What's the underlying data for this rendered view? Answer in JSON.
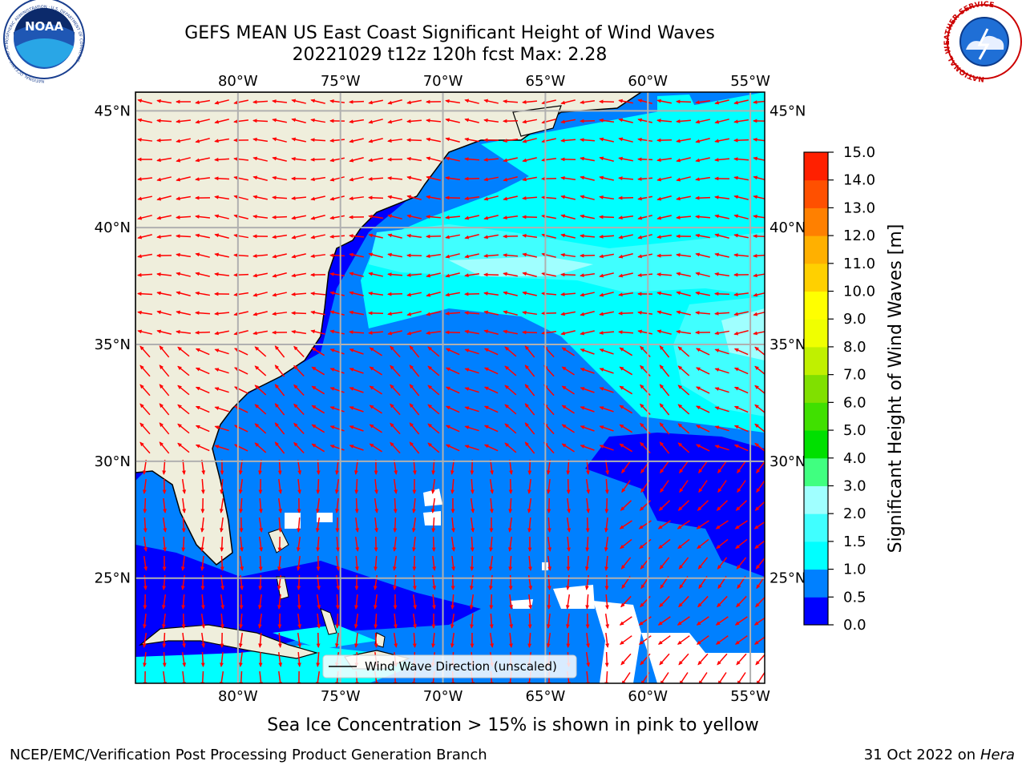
{
  "title": {
    "line1": "GEFS MEAN US East Coast Significant Height of Wind Waves",
    "line2": "20221029 t12z 120h fcst   Max: 2.28"
  },
  "logos": {
    "left": "NOAA",
    "left_ring": "NATIONAL OCEANIC AND ATMOSPHERIC ADMINISTRATION · U.S. DEPARTMENT OF COMMERCE",
    "right_ring": "NATIONAL WEATHER SERVICE"
  },
  "map": {
    "lon_range": [
      -85,
      -54.3
    ],
    "lat_range": [
      20.5,
      45.8
    ],
    "lon_ticks": [
      {
        "value": -80,
        "label": "80°W"
      },
      {
        "value": -75,
        "label": "75°W"
      },
      {
        "value": -70,
        "label": "70°W"
      },
      {
        "value": -65,
        "label": "65°W"
      },
      {
        "value": -60,
        "label": "60°W"
      },
      {
        "value": -55,
        "label": "55°W"
      }
    ],
    "lat_ticks": [
      {
        "value": 45,
        "label": "45°N"
      },
      {
        "value": 40,
        "label": "40°N"
      },
      {
        "value": 35,
        "label": "35°N"
      },
      {
        "value": 30,
        "label": "30°N"
      },
      {
        "value": 25,
        "label": "25°N"
      }
    ],
    "grid": true,
    "land_color": "#efeedc",
    "vector_color": "#ff0000",
    "legend_label": "Wind Wave Direction (unscaled)"
  },
  "colorbar": {
    "label": "Significant Height of Wind Waves [m]",
    "tick_labels": [
      "0.0",
      "0.5",
      "1.0",
      "1.5",
      "2.0",
      "3.0",
      "4.0",
      "5.0",
      "6.0",
      "7.0",
      "8.0",
      "9.0",
      "10.0",
      "11.0",
      "12.0",
      "13.0",
      "14.0",
      "15.0"
    ],
    "colors": [
      "#0000ff",
      "#0080ff",
      "#00ffff",
      "#40ffff",
      "#a0ffff",
      "#40ff80",
      "#00e000",
      "#40e000",
      "#80e000",
      "#c0f000",
      "#f0ff00",
      "#ffff00",
      "#ffd000",
      "#ffb000",
      "#ff8000",
      "#ff5000",
      "#ff2000"
    ]
  },
  "footer": {
    "note": "Sea Ice Concentration > 15% is shown in pink to yellow",
    "credit": "NCEP/EMC/Verification Post Processing Product Generation Branch",
    "date_text": "31 Oct 2022 on ",
    "host": "Hera"
  }
}
